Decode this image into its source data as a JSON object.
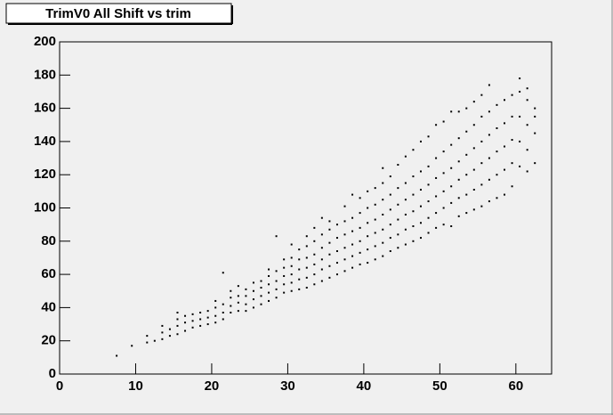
{
  "chart_data": {
    "type": "scatter",
    "title": "TrimV0 All Shift vs trim",
    "color": "#000000",
    "xlim": [
      0,
      64.7
    ],
    "ylim": [
      0,
      200
    ],
    "xticks": [
      0,
      10,
      20,
      30,
      40,
      50,
      60
    ],
    "yticks": [
      0,
      20,
      40,
      60,
      80,
      100,
      120,
      140,
      160,
      180,
      200
    ],
    "x": [
      7.5,
      9.5,
      11.5,
      11.5,
      12.5,
      13.5,
      13.5,
      13.5,
      14.5,
      14.5,
      15.5,
      15.5,
      15.5,
      15.5,
      16.5,
      16.5,
      16.5,
      17.5,
      17.5,
      17.5,
      18.5,
      18.5,
      18.5,
      19.5,
      19.5,
      19.5,
      20.5,
      20.5,
      20.5,
      20.5,
      21.5,
      21.5,
      21.5,
      21.5,
      22.5,
      22.5,
      22.5,
      22.5,
      23.5,
      23.5,
      23.5,
      23.5,
      24.5,
      24.5,
      24.5,
      24.5,
      25.5,
      25.5,
      25.5,
      25.5,
      26.5,
      26.5,
      26.5,
      26.5,
      27.5,
      27.5,
      27.5,
      27.5,
      27.5,
      28.5,
      28.5,
      28.5,
      28.5,
      28.5,
      29.5,
      29.5,
      29.5,
      29.5,
      29.5,
      30.5,
      30.5,
      30.5,
      30.5,
      30.5,
      30.5,
      31.5,
      31.5,
      31.5,
      31.5,
      31.5,
      32.5,
      32.5,
      32.5,
      32.5,
      32.5,
      32.5,
      33.5,
      33.5,
      33.5,
      33.5,
      33.5,
      33.5,
      34.5,
      34.5,
      34.5,
      34.5,
      34.5,
      34.5,
      35.5,
      35.5,
      35.5,
      35.5,
      35.5,
      35.5,
      36.5,
      36.5,
      36.5,
      36.5,
      36.5,
      37.5,
      37.5,
      37.5,
      37.5,
      37.5,
      37.5,
      38.5,
      38.5,
      38.5,
      38.5,
      38.5,
      38.5,
      39.5,
      39.5,
      39.5,
      39.5,
      39.5,
      39.5,
      40.5,
      40.5,
      40.5,
      40.5,
      40.5,
      40.5,
      41.5,
      41.5,
      41.5,
      41.5,
      41.5,
      41.5,
      42.5,
      42.5,
      42.5,
      42.5,
      42.5,
      42.5,
      42.5,
      43.5,
      43.5,
      43.5,
      43.5,
      43.5,
      43.5,
      44.5,
      44.5,
      44.5,
      44.5,
      44.5,
      44.5,
      45.5,
      45.5,
      45.5,
      45.5,
      45.5,
      45.5,
      46.5,
      46.5,
      46.5,
      46.5,
      46.5,
      46.5,
      47.5,
      47.5,
      47.5,
      47.5,
      47.5,
      47.5,
      48.5,
      48.5,
      48.5,
      48.5,
      48.5,
      48.5,
      49.5,
      49.5,
      49.5,
      49.5,
      49.5,
      49.5,
      50.5,
      50.5,
      50.5,
      50.5,
      50.5,
      50.5,
      51.5,
      51.5,
      51.5,
      51.5,
      51.5,
      51.5,
      52.5,
      52.5,
      52.5,
      52.5,
      52.5,
      52.5,
      53.5,
      53.5,
      53.5,
      53.5,
      53.5,
      53.5,
      54.5,
      54.5,
      54.5,
      54.5,
      54.5,
      54.5,
      55.5,
      55.5,
      55.5,
      55.5,
      55.5,
      55.5,
      56.5,
      56.5,
      56.5,
      56.5,
      56.5,
      56.5,
      57.5,
      57.5,
      57.5,
      57.5,
      57.5,
      58.5,
      58.5,
      58.5,
      58.5,
      58.5,
      59.5,
      59.5,
      59.5,
      59.5,
      59.5,
      60.5,
      60.5,
      60.5,
      60.5,
      60.5,
      61.5,
      61.5,
      61.5,
      61.5,
      61.5,
      62.5,
      62.5,
      62.5,
      62.5
    ],
    "y": [
      11,
      17,
      19,
      23,
      20,
      21,
      25,
      29,
      23,
      27,
      24,
      29,
      33,
      37,
      26,
      31,
      35,
      28,
      32,
      36,
      29,
      33,
      37,
      30,
      34,
      38,
      31,
      35,
      40,
      44,
      33,
      37,
      42,
      61,
      37,
      41,
      46,
      50,
      38,
      43,
      47,
      53,
      38,
      42,
      47,
      51,
      40,
      45,
      50,
      55,
      42,
      47,
      52,
      56,
      44,
      49,
      54,
      59,
      63,
      46,
      51,
      56,
      62,
      83,
      49,
      54,
      59,
      64,
      69,
      50,
      55,
      60,
      65,
      70,
      78,
      51,
      57,
      63,
      69,
      75,
      52,
      58,
      64,
      70,
      77,
      83,
      54,
      60,
      66,
      72,
      80,
      88,
      56,
      63,
      69,
      76,
      84,
      94,
      58,
      65,
      72,
      79,
      87,
      92,
      60,
      67,
      74,
      82,
      90,
      62,
      69,
      76,
      84,
      92,
      101,
      64,
      71,
      78,
      86,
      94,
      108,
      66,
      73,
      80,
      88,
      97,
      106,
      67,
      75,
      83,
      91,
      100,
      110,
      69,
      77,
      85,
      93,
      102,
      112,
      71,
      79,
      87,
      96,
      105,
      115,
      124,
      74,
      82,
      90,
      99,
      108,
      119,
      76,
      84,
      93,
      102,
      112,
      126,
      78,
      87,
      96,
      105,
      115,
      131,
      80,
      89,
      98,
      108,
      119,
      135,
      82,
      91,
      101,
      111,
      122,
      140,
      85,
      94,
      104,
      114,
      125,
      143,
      88,
      97,
      107,
      118,
      130,
      150,
      90,
      100,
      110,
      121,
      134,
      152,
      89,
      103,
      113,
      124,
      138,
      158,
      95,
      106,
      117,
      128,
      142,
      158,
      97,
      108,
      120,
      132,
      146,
      160,
      99,
      111,
      123,
      136,
      150,
      164,
      101,
      114,
      127,
      140,
      155,
      168,
      104,
      117,
      130,
      144,
      158,
      174,
      106,
      120,
      134,
      148,
      162,
      108,
      123,
      137,
      151,
      165,
      113,
      127,
      141,
      155,
      168,
      125,
      140,
      155,
      170,
      178,
      122,
      135,
      150,
      165,
      172,
      127,
      145,
      155,
      160
    ]
  }
}
